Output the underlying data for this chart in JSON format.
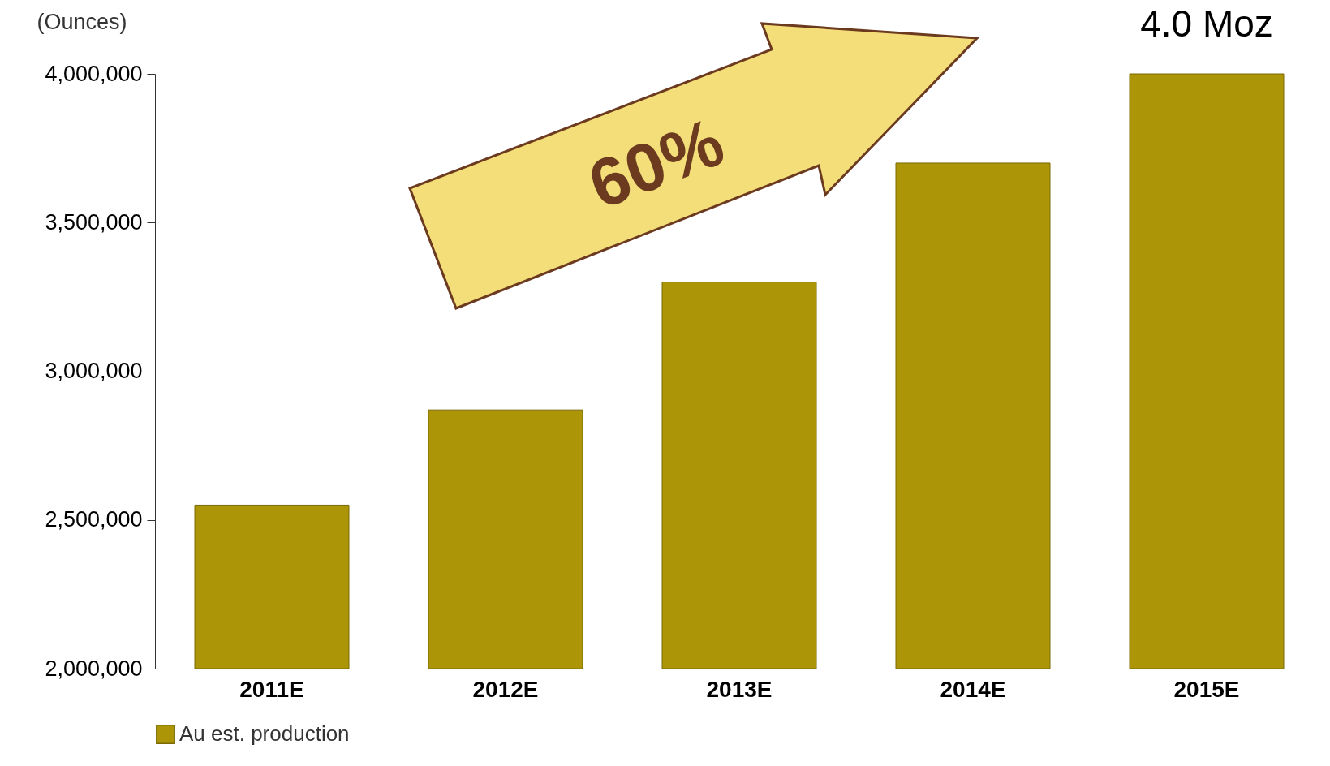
{
  "chart_data": {
    "type": "bar",
    "ylabel": "(Ounces)",
    "categories": [
      "2011E",
      "2012E",
      "2013E",
      "2014E",
      "2015E"
    ],
    "series": [
      {
        "name": "Au est. production",
        "color": "#ad9508",
        "values": [
          2550000,
          2870000,
          3300000,
          3700000,
          4000000
        ]
      }
    ],
    "ylim": [
      2000000,
      4000000
    ],
    "yticks": [
      {
        "value": 2000000,
        "label": "2,000,000"
      },
      {
        "value": 2500000,
        "label": "2,500,000"
      },
      {
        "value": 3000000,
        "label": "3,000,000"
      },
      {
        "value": 3500000,
        "label": "3,500,000"
      },
      {
        "value": 4000000,
        "label": "4,000,000"
      }
    ],
    "grid": false,
    "legend": "bottom",
    "annotations": [
      {
        "text": "4.0 Moz",
        "x": "2015E",
        "y": 4000000
      },
      "60%"
    ]
  }
}
